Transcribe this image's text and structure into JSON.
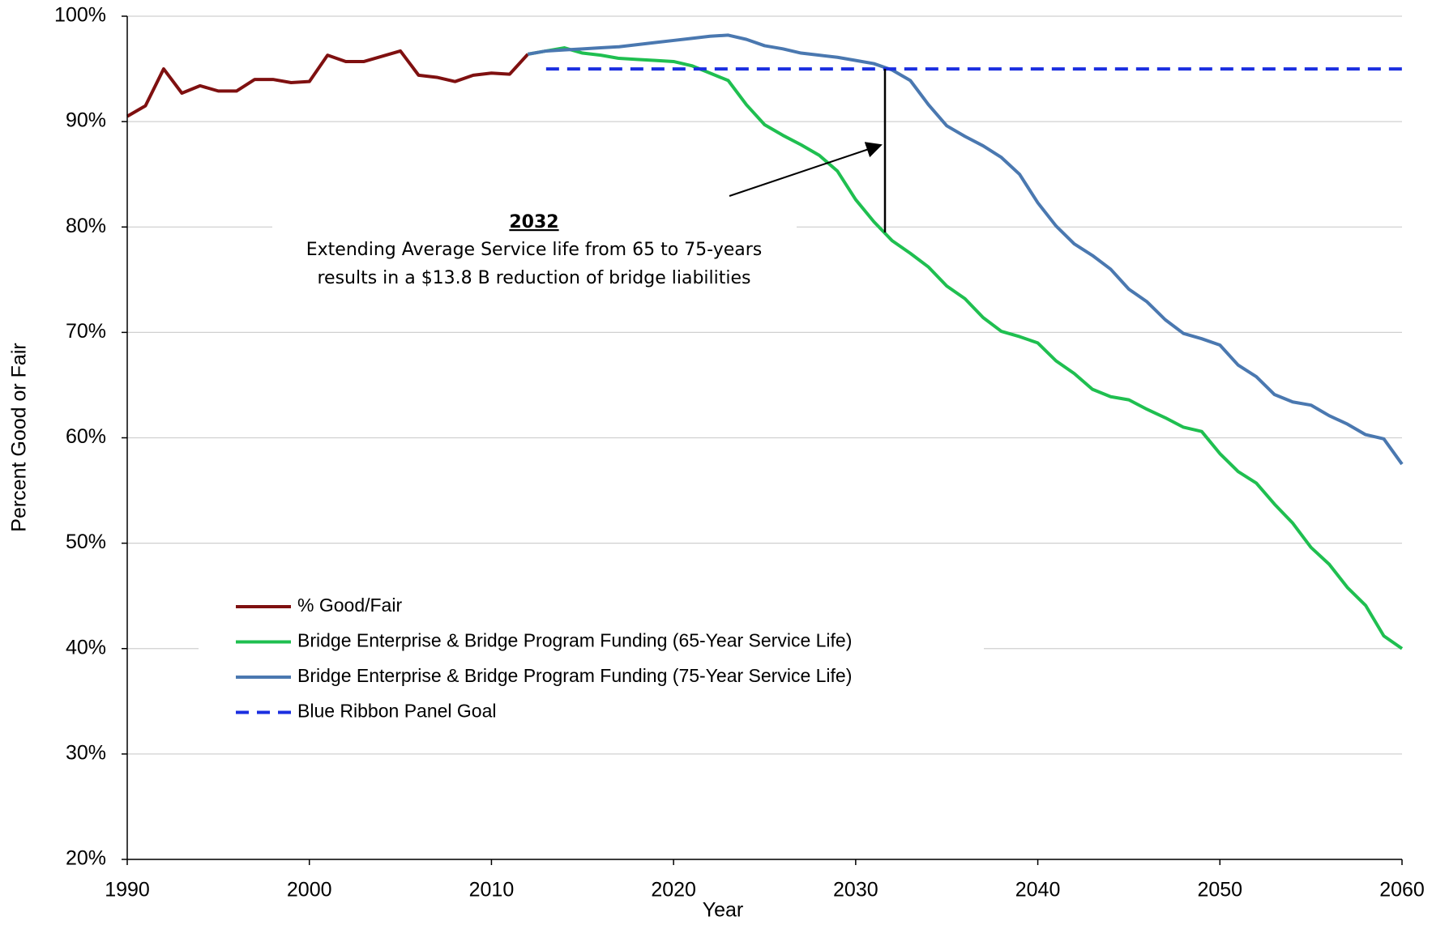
{
  "chart_data": {
    "type": "line",
    "xlabel": "Year",
    "ylabel": "Percent Good or Fair",
    "xlim": [
      1990,
      2060
    ],
    "xticks": [
      1990,
      2000,
      2010,
      2020,
      2030,
      2040,
      2050,
      2060
    ],
    "ylim": [
      20,
      100
    ],
    "yticks": [
      {
        "value": 20,
        "label": "20%"
      },
      {
        "value": 30,
        "label": "30%"
      },
      {
        "value": 40,
        "label": "40%"
      },
      {
        "value": 50,
        "label": "50%"
      },
      {
        "value": 60,
        "label": "60%"
      },
      {
        "value": 70,
        "label": "70%"
      },
      {
        "value": 80,
        "label": "80%"
      },
      {
        "value": 90,
        "label": "90%"
      },
      {
        "value": 100,
        "label": "100%"
      }
    ],
    "grid": true,
    "series": [
      {
        "name": "% Good/Fair",
        "color": "#7f1010",
        "dashed": false,
        "x": [
          1990,
          1991,
          1992,
          1993,
          1994,
          1995,
          1996,
          1997,
          1998,
          1999,
          2000,
          2001,
          2002,
          2003,
          2004,
          2005,
          2006,
          2007,
          2008,
          2009,
          2010,
          2011,
          2012
        ],
        "values": [
          90.5,
          91.5,
          95,
          92.7,
          93.4,
          92.9,
          92.9,
          94,
          94,
          93.7,
          93.8,
          96.3,
          95.7,
          95.7,
          96.2,
          96.7,
          94.4,
          94.2,
          93.8,
          94.4,
          94.6,
          94.5,
          96.4
        ]
      },
      {
        "name": "Bridge Enterprise & Bridge Program Funding (65-Year Service Life)",
        "color": "#1fbf50",
        "dashed": false,
        "x": [
          2012,
          2013,
          2014,
          2015,
          2016,
          2017,
          2018,
          2019,
          2020,
          2021,
          2022,
          2023,
          2024,
          2025,
          2026,
          2027,
          2028,
          2029,
          2030,
          2031,
          2032,
          2033,
          2034,
          2035,
          2036,
          2037,
          2038,
          2039,
          2040,
          2041,
          2042,
          2043,
          2044,
          2045,
          2046,
          2047,
          2048,
          2049,
          2050,
          2051,
          2052,
          2053,
          2054,
          2055,
          2056,
          2057,
          2058,
          2059,
          2060
        ],
        "values": [
          96.4,
          96.7,
          97,
          96.5,
          96.3,
          96,
          95.9,
          95.8,
          95.7,
          95.3,
          94.6,
          93.9,
          91.6,
          89.7,
          88.7,
          87.8,
          86.8,
          85.3,
          82.6,
          80.5,
          78.7,
          77.5,
          76.2,
          74.4,
          73.2,
          71.4,
          70.1,
          69.6,
          69,
          67.3,
          66.1,
          64.6,
          63.9,
          63.6,
          62.7,
          61.9,
          61,
          60.6,
          58.5,
          56.8,
          55.7,
          53.7,
          51.9,
          49.6,
          48,
          45.8,
          44.1,
          41.2,
          40
        ]
      },
      {
        "name": "Bridge Enterprise & Bridge Program Funding (75-Year Service Life)",
        "color": "#4a78b0",
        "dashed": false,
        "x": [
          2012,
          2013,
          2014,
          2015,
          2016,
          2017,
          2018,
          2019,
          2020,
          2021,
          2022,
          2023,
          2024,
          2025,
          2026,
          2027,
          2028,
          2029,
          2030,
          2031,
          2032,
          2033,
          2034,
          2035,
          2036,
          2037,
          2038,
          2039,
          2040,
          2041,
          2042,
          2043,
          2044,
          2045,
          2046,
          2047,
          2048,
          2049,
          2050,
          2051,
          2052,
          2053,
          2054,
          2055,
          2056,
          2057,
          2058,
          2059,
          2060
        ],
        "values": [
          96.4,
          96.7,
          96.8,
          96.9,
          97,
          97.1,
          97.3,
          97.5,
          97.7,
          97.9,
          98.1,
          98.2,
          97.8,
          97.2,
          96.9,
          96.5,
          96.3,
          96.1,
          95.8,
          95.5,
          94.9,
          93.9,
          91.6,
          89.6,
          88.6,
          87.7,
          86.6,
          85,
          82.3,
          80.1,
          78.4,
          77.3,
          76,
          74.1,
          72.9,
          71.2,
          69.9,
          69.4,
          68.8,
          66.9,
          65.8,
          64.1,
          63.4,
          63.1,
          62.1,
          61.3,
          60.3,
          59.9,
          57.5
        ]
      },
      {
        "name": "Blue Ribbon Panel Goal",
        "color": "#1a2ee0",
        "dashed": true,
        "x": [
          2013,
          2060
        ],
        "values": [
          95,
          95
        ]
      }
    ],
    "annotation": {
      "title": "2032",
      "lines": [
        "Extending Average Service life from 65 to 75-years",
        "results in a $13.8 B reduction of bridge liabilities"
      ]
    }
  }
}
